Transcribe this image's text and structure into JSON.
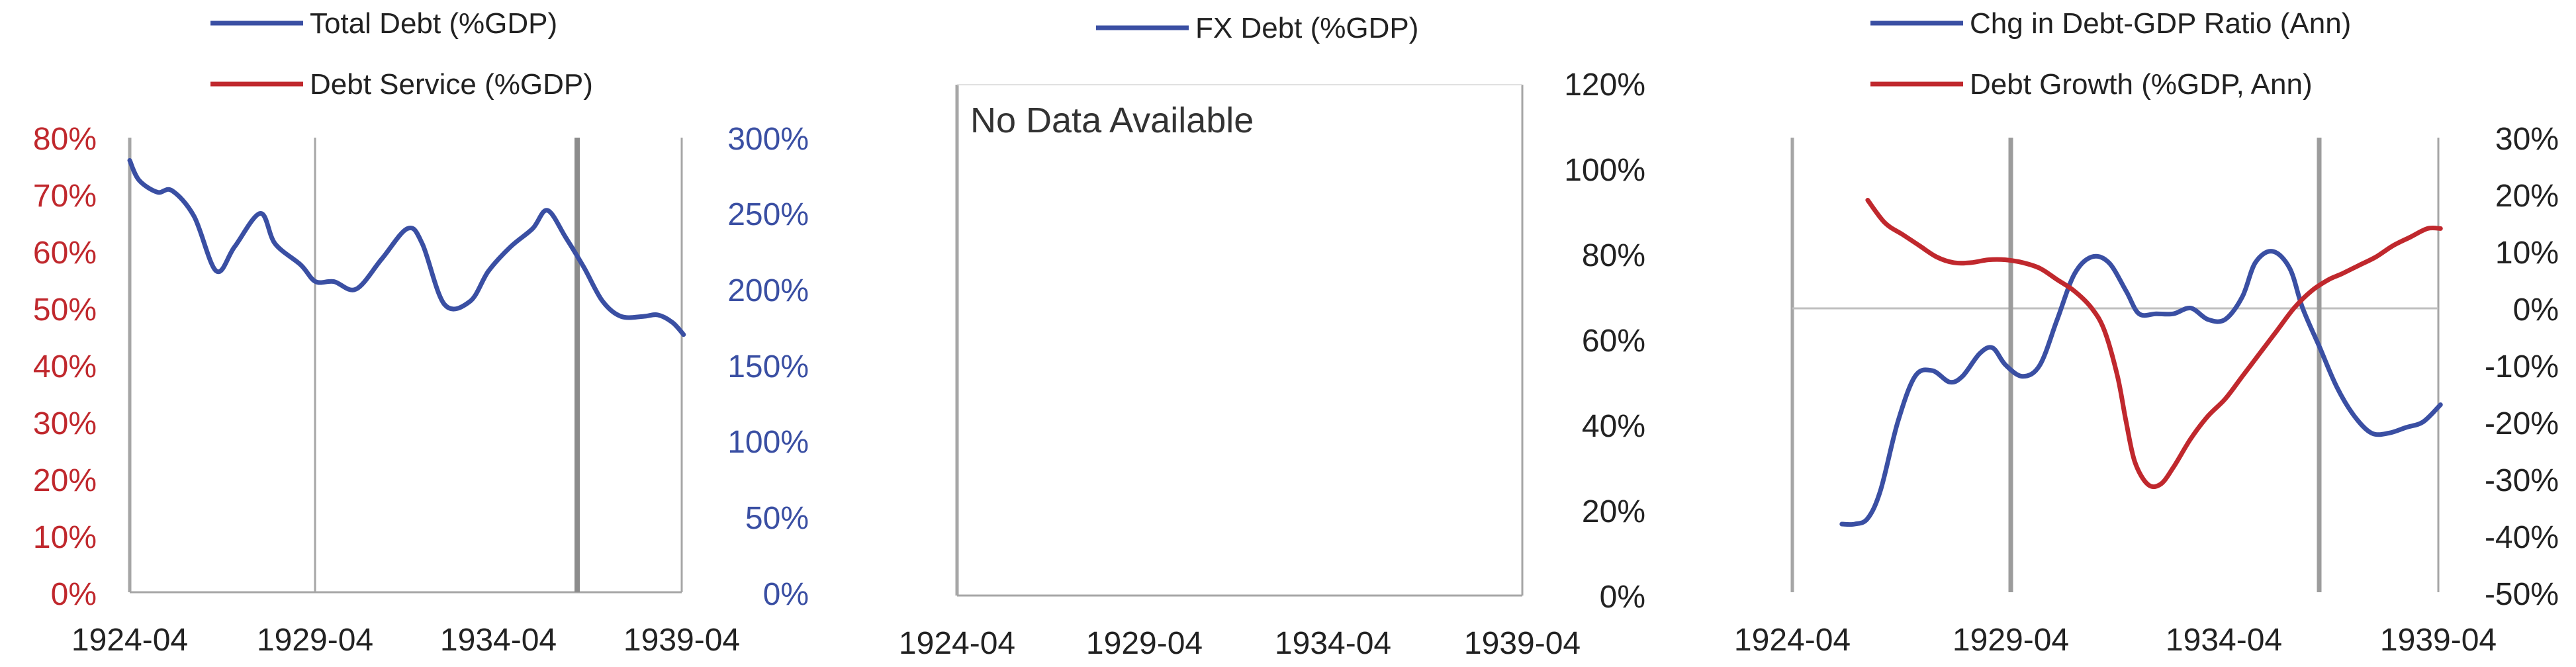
{
  "colors": {
    "blue": "#3a4fa3",
    "red": "#c0282d",
    "axis": "#a6a6a6",
    "text": "#222222"
  },
  "chart_data": [
    {
      "type": "line",
      "x_ticks": [
        "1924-04",
        "1929-04",
        "1934-04",
        "1939-04"
      ],
      "legend": [
        "Total Debt (%GDP)",
        "Debt Service (%GDP)"
      ],
      "y_left_ticks": [
        "80%",
        "70%",
        "60%",
        "50%",
        "40%",
        "30%",
        "20%",
        "10%",
        "0%"
      ],
      "y_left_range": [
        0,
        80
      ],
      "y_right_ticks": [
        "300%",
        "250%",
        "200%",
        "150%",
        "100%",
        "50%",
        "0%"
      ],
      "y_right_range": [
        0,
        300
      ],
      "series": [
        {
          "name": "Total Debt (%GDP)",
          "axis": "right",
          "x": [
            1924.25,
            1924.5,
            1925.0,
            1925.4,
            1926.0,
            1926.6,
            1927.1,
            1927.8,
            1928.2,
            1928.9,
            1929.3,
            1929.8,
            1930.4,
            1931.1,
            1931.8,
            1932.2,
            1932.8,
            1933.5,
            1934.0,
            1934.6,
            1935.2,
            1935.6,
            1936.1,
            1936.6,
            1937.1,
            1937.6,
            1938.2,
            1938.6,
            1939.0,
            1939.3
          ],
          "values": [
            285,
            272,
            264,
            265,
            248,
            212,
            228,
            250,
            230,
            216,
            205,
            205,
            200,
            220,
            240,
            230,
            190,
            192,
            212,
            228,
            240,
            252,
            234,
            214,
            192,
            182,
            182,
            183,
            178,
            170
          ]
        },
        {
          "name": "Debt Service (%GDP)",
          "axis": "left",
          "x": [],
          "values": []
        }
      ]
    },
    {
      "type": "line",
      "x_ticks": [
        "1924-04",
        "1929-04",
        "1934-04",
        "1939-04"
      ],
      "legend": [
        "FX Debt (%GDP)"
      ],
      "y_right_ticks": [
        "120%",
        "100%",
        "80%",
        "60%",
        "40%",
        "20%",
        "0%"
      ],
      "y_right_range": [
        0,
        120
      ],
      "message": "No Data Available",
      "series": [
        {
          "name": "FX Debt (%GDP)",
          "x": [],
          "values": []
        }
      ]
    },
    {
      "type": "line",
      "x_ticks": [
        "1924-04",
        "1929-04",
        "1934-04",
        "1939-04"
      ],
      "legend": [
        "Chg in Debt-GDP Ratio (Ann)",
        "Debt Growth (%GDP, Ann)"
      ],
      "y_right_ticks": [
        "30%",
        "20%",
        "10%",
        "0%",
        "-10%",
        "-20%",
        "-30%",
        "-40%",
        "-50%"
      ],
      "y_right_range": [
        -50,
        30
      ],
      "series": [
        {
          "name": "Chg in Debt-GDP Ratio (Ann)",
          "x": [
            1925.4,
            1925.7,
            1926.0,
            1926.3,
            1926.7,
            1927.1,
            1927.5,
            1927.9,
            1928.2,
            1928.6,
            1928.9,
            1929.2,
            1929.6,
            1930.0,
            1930.4,
            1930.8,
            1931.2,
            1931.6,
            1932.0,
            1932.3,
            1932.7,
            1933.1,
            1933.5,
            1933.9,
            1934.3,
            1934.7,
            1935.0,
            1935.4,
            1935.8,
            1936.1,
            1936.5,
            1936.9,
            1937.3,
            1937.7,
            1938.1,
            1938.5,
            1938.9,
            1939.3
          ],
          "values": [
            -38,
            -38,
            -37,
            -32,
            -20,
            -12,
            -11,
            -13,
            -12,
            -8,
            -7,
            -10,
            -12,
            -10,
            -2,
            6,
            9,
            8,
            3,
            -1,
            -1,
            -1,
            0,
            -2,
            -2,
            2,
            8,
            10,
            7,
            0,
            -7,
            -14,
            -19,
            -22,
            -22,
            -21,
            -20,
            -17
          ]
        },
        {
          "name": "Debt Growth (%GDP, Ann)",
          "x": [
            1926.0,
            1926.4,
            1926.8,
            1927.2,
            1927.6,
            1928.0,
            1928.4,
            1928.8,
            1929.2,
            1929.6,
            1930.0,
            1930.4,
            1930.8,
            1931.2,
            1931.5,
            1931.8,
            1932.0,
            1932.2,
            1932.5,
            1932.8,
            1933.1,
            1933.5,
            1933.9,
            1934.3,
            1934.7,
            1935.1,
            1935.5,
            1935.9,
            1936.3,
            1936.7,
            1937.0,
            1937.4,
            1937.8,
            1938.2,
            1938.6,
            1939.0,
            1939.3
          ],
          "values": [
            19,
            15,
            13,
            11,
            9,
            8,
            8,
            8.5,
            8.5,
            8,
            7,
            5,
            3,
            0,
            -4,
            -12,
            -20,
            -27,
            -31,
            -31,
            -28,
            -23,
            -19,
            -16,
            -12,
            -8,
            -4,
            0,
            3,
            5,
            6,
            7.5,
            9,
            11,
            12.5,
            14,
            14
          ]
        }
      ]
    }
  ]
}
